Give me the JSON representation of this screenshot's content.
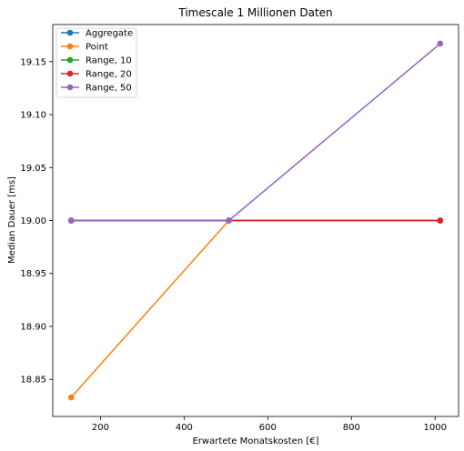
{
  "chart_data": {
    "type": "line",
    "title": "Timescale 1 Millionen Daten",
    "xlabel": "Erwartete Monatskosten [€]",
    "ylabel": "Median Dauer [ms]",
    "xlim": [
      86,
      1056
    ],
    "ylim": [
      18.815,
      19.185
    ],
    "xticks": [
      200,
      400,
      600,
      800,
      1000
    ],
    "yticks": [
      18.85,
      18.9,
      18.95,
      19.0,
      19.05,
      19.1,
      19.15
    ],
    "ytick_labels": [
      "18.85",
      "18.90",
      "18.95",
      "19.00",
      "19.05",
      "19.10",
      "19.15"
    ],
    "grid": false,
    "legend_position": "top-left",
    "x": [
      130,
      507,
      1012
    ],
    "series": [
      {
        "name": "Aggregate",
        "color": "#1f77b4",
        "values": [
          19.0,
          19.0,
          19.0
        ]
      },
      {
        "name": "Point",
        "color": "#ff7f0e",
        "values": [
          18.833,
          19.0,
          19.0
        ]
      },
      {
        "name": "Range, 10",
        "color": "#2ca02c",
        "values": [
          19.0,
          19.0,
          19.0
        ]
      },
      {
        "name": "Range, 20",
        "color": "#d62728",
        "values": [
          19.0,
          19.0,
          19.0
        ]
      },
      {
        "name": "Range, 50",
        "color": "#9467bd",
        "values": [
          19.0,
          19.0,
          19.167
        ]
      }
    ]
  }
}
